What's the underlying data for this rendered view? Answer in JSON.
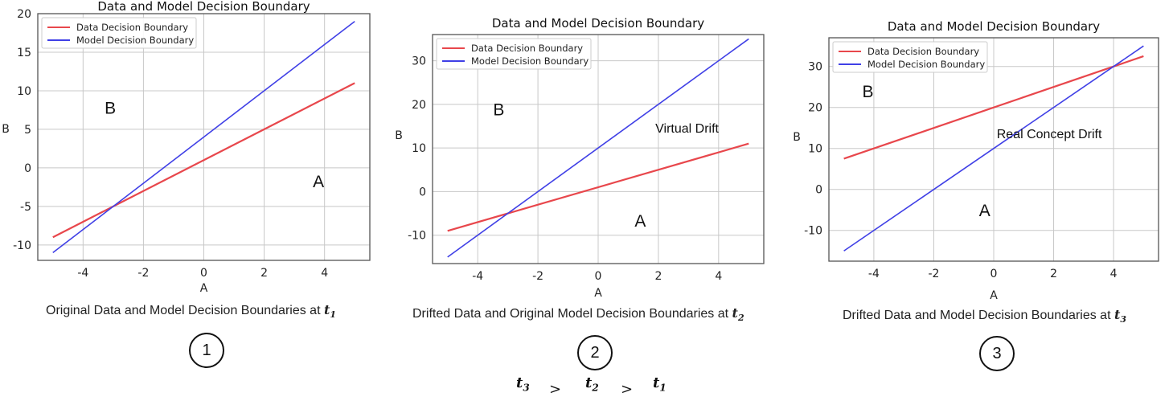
{
  "colors": {
    "data_line": "#e8474c",
    "model_line": "#4040e6",
    "grid": "#c8c8c8",
    "frame": "#555555"
  },
  "legend": {
    "data_label": "Data Decision Boundary",
    "model_label": "Model Decision Boundary"
  },
  "chart_data": [
    {
      "type": "line",
      "title": "Data and Model Decision Boundary",
      "xlabel": "A",
      "ylabel": "B",
      "xlim": [
        -5.5,
        5.5
      ],
      "ylim": [
        -12,
        20
      ],
      "xticks": [
        -4,
        -2,
        0,
        2,
        4
      ],
      "yticks": [
        -10,
        -5,
        0,
        5,
        10,
        15,
        20
      ],
      "grid": true,
      "legend_position": "top-left",
      "series": [
        {
          "name": "Data Decision Boundary",
          "x": [
            -5,
            5
          ],
          "y": [
            -9,
            11
          ]
        },
        {
          "name": "Model Decision Boundary",
          "x": [
            -5,
            5
          ],
          "y": [
            -11,
            19
          ]
        }
      ],
      "region_labels": [
        {
          "text": "B",
          "x": -3.1,
          "y": 7
        },
        {
          "text": "A",
          "x": 3.8,
          "y": -2.5
        }
      ],
      "annotations": [],
      "caption": "Original Data and Model Decision Boundaries at",
      "caption_symbol": "t",
      "caption_sub": "1",
      "number": "1"
    },
    {
      "type": "line",
      "title": "Data and Model Decision Boundary",
      "xlabel": "A",
      "ylabel": "B",
      "xlim": [
        -5.5,
        5.5
      ],
      "ylim": [
        -16.5,
        36
      ],
      "xticks": [
        -4,
        -2,
        0,
        2,
        4
      ],
      "yticks": [
        -10,
        0,
        10,
        20,
        30
      ],
      "grid": true,
      "legend_position": "top-left",
      "series": [
        {
          "name": "Data Decision Boundary",
          "x": [
            -5,
            5
          ],
          "y": [
            -9,
            11
          ]
        },
        {
          "name": "Model Decision Boundary",
          "x": [
            -5,
            5
          ],
          "y": [
            -15,
            35
          ]
        }
      ],
      "region_labels": [
        {
          "text": "B",
          "x": -3.3,
          "y": 17.5
        },
        {
          "text": "A",
          "x": 1.4,
          "y": -8
        }
      ],
      "annotations": [
        {
          "text": "Virtual Drift",
          "x": 1.9,
          "y": 13.5
        }
      ],
      "caption": "Drifted Data and Original Model Decision Boundaries at",
      "caption_symbol": "t",
      "caption_sub": "2",
      "number": "2"
    },
    {
      "type": "line",
      "title": "Data and Model Decision Boundary",
      "xlabel": "A",
      "ylabel": "B",
      "xlim": [
        -5.5,
        5.5
      ],
      "ylim": [
        -17.5,
        37
      ],
      "xticks": [
        -4,
        -2,
        0,
        2,
        4
      ],
      "yticks": [
        -10,
        0,
        10,
        20,
        30
      ],
      "grid": true,
      "legend_position": "top-left",
      "series": [
        {
          "name": "Data Decision Boundary",
          "x": [
            -5,
            5
          ],
          "y": [
            7.5,
            32.5
          ]
        },
        {
          "name": "Model Decision Boundary",
          "x": [
            -5,
            5
          ],
          "y": [
            -15,
            35
          ]
        }
      ],
      "region_labels": [
        {
          "text": "B",
          "x": -4.2,
          "y": 22.5
        },
        {
          "text": "A",
          "x": -0.3,
          "y": -6.5
        }
      ],
      "annotations": [
        {
          "text": "Real Concept Drift",
          "x": 0.1,
          "y": 12.5
        }
      ],
      "caption": "Drifted Data and Model Decision Boundaries at",
      "caption_symbol": "t",
      "caption_sub": "3",
      "number": "3"
    }
  ],
  "ordering": {
    "t3": "t",
    "s3": "3",
    "gt1": ">",
    "t2": "t",
    "s2": "2",
    "gt2": ">",
    "t1": "t",
    "s1": "1"
  }
}
